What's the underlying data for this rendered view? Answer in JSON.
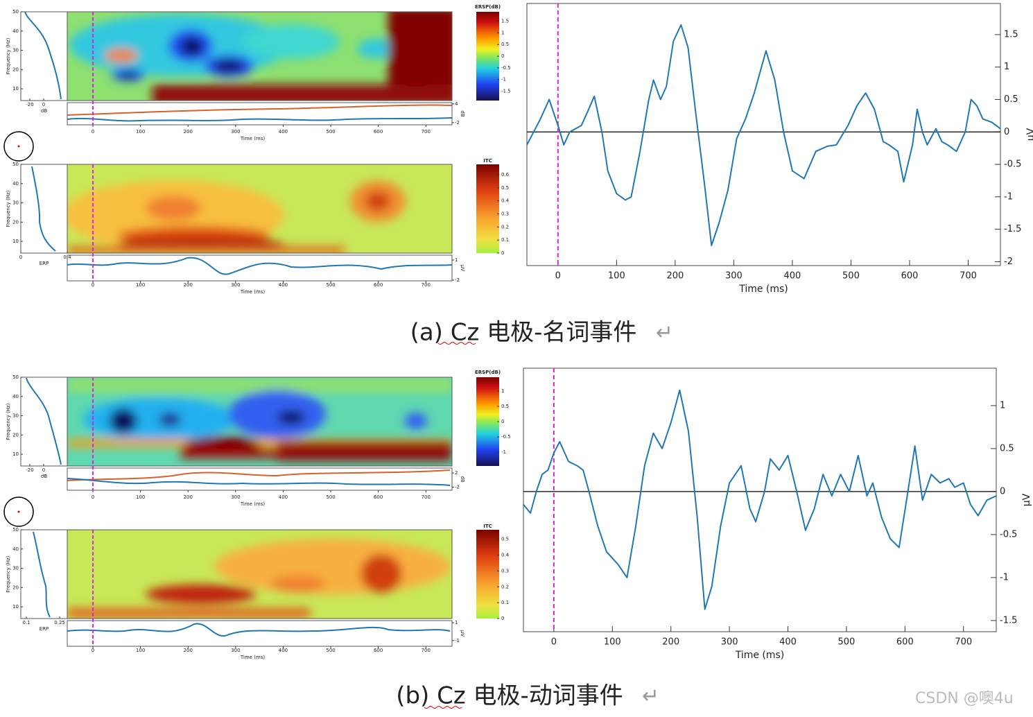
{
  "chart_data": [
    {
      "type": "line",
      "xlabel": "Time (ms)",
      "ylabel": "μV",
      "color": "#1f77b4",
      "marker_x": 0,
      "marker_color": "#e020e0",
      "zero_line": true,
      "xlim": [
        -53,
        755
      ],
      "ylim": [
        -2.06,
        1.98
      ],
      "xticks": [
        0,
        100,
        200,
        300,
        400,
        500,
        600,
        700
      ],
      "yticks": [
        1.5,
        1,
        0.5,
        0,
        -0.5,
        -1,
        -1.5,
        -2
      ],
      "x": [
        -53,
        -30,
        -15,
        0,
        10,
        20,
        30,
        40,
        50,
        62,
        75,
        85,
        100,
        115,
        125,
        140,
        155,
        163,
        175,
        185,
        197,
        210,
        222,
        235,
        250,
        262,
        275,
        290,
        305,
        320,
        335,
        355,
        370,
        385,
        400,
        420,
        440,
        460,
        475,
        495,
        510,
        525,
        540,
        555,
        565,
        580,
        590,
        605,
        613,
        622,
        630,
        645,
        655,
        665,
        680,
        695,
        705,
        715,
        725,
        740,
        755
      ],
      "values": [
        -0.2,
        0.2,
        0.5,
        0.1,
        -0.2,
        0.0,
        0.05,
        0.1,
        0.3,
        0.55,
        0.0,
        -0.6,
        -0.95,
        -1.05,
        -1.0,
        -0.3,
        0.5,
        0.8,
        0.5,
        0.7,
        1.4,
        1.65,
        1.3,
        0.3,
        -0.8,
        -1.75,
        -1.4,
        -0.9,
        -0.1,
        0.2,
        0.6,
        1.25,
        0.8,
        0.0,
        -0.6,
        -0.72,
        -0.3,
        -0.22,
        -0.2,
        0.1,
        0.4,
        0.6,
        0.35,
        -0.15,
        -0.2,
        -0.3,
        -0.77,
        -0.2,
        0.35,
        0.0,
        -0.2,
        0.05,
        -0.15,
        -0.2,
        -0.3,
        0.0,
        0.5,
        0.4,
        0.2,
        0.15,
        0.05
      ]
    },
    {
      "type": "line",
      "xlabel": "Time (ms)",
      "ylabel": "μV",
      "color": "#1f77b4",
      "marker_x": 0,
      "marker_color": "#e020e0",
      "zero_line": true,
      "xlim": [
        -52,
        756
      ],
      "ylim": [
        -1.63,
        1.435
      ],
      "xticks": [
        0,
        100,
        200,
        300,
        400,
        500,
        600,
        700
      ],
      "yticks": [
        1,
        0.5,
        0,
        -0.5,
        -1,
        -1.5
      ],
      "x": [
        -52,
        -40,
        -30,
        -20,
        -10,
        0,
        10,
        25,
        40,
        50,
        60,
        75,
        90,
        110,
        125,
        140,
        155,
        170,
        185,
        200,
        215,
        230,
        245,
        258,
        270,
        285,
        300,
        320,
        335,
        345,
        360,
        370,
        385,
        400,
        415,
        430,
        445,
        460,
        475,
        490,
        505,
        520,
        535,
        545,
        560,
        575,
        590,
        605,
        617,
        630,
        645,
        660,
        675,
        685,
        700,
        712,
        725,
        740,
        756
      ],
      "values": [
        -0.15,
        -0.25,
        0.0,
        0.2,
        0.25,
        0.45,
        0.58,
        0.35,
        0.3,
        0.25,
        0.0,
        -0.4,
        -0.7,
        -0.85,
        -1.0,
        -0.4,
        0.3,
        0.68,
        0.5,
        0.8,
        1.18,
        0.7,
        -0.3,
        -1.37,
        -1.1,
        -0.4,
        0.1,
        0.3,
        -0.2,
        -0.35,
        0.0,
        0.38,
        0.25,
        0.42,
        0.0,
        -0.45,
        -0.2,
        0.2,
        -0.05,
        0.2,
        0.0,
        0.42,
        -0.05,
        0.1,
        -0.3,
        -0.55,
        -0.65,
        0.0,
        0.53,
        -0.1,
        0.2,
        0.1,
        0.15,
        0.05,
        0.1,
        -0.15,
        -0.28,
        -0.1,
        -0.05
      ]
    }
  ],
  "panels": [
    {
      "freq_label": "Frequency (Hz)",
      "freq_ticks": [
        10,
        20,
        30,
        40,
        50
      ],
      "freq_lim": [
        3.9,
        50
      ],
      "db_ticks": [
        -20,
        0
      ],
      "db_lim": [
        -33,
        34
      ],
      "db_label": "dB",
      "time_ticks": [
        0,
        100,
        200,
        300,
        400,
        500,
        600,
        700
      ],
      "time_lim": [
        -54,
        755
      ],
      "time_label": "Time (ms)",
      "event_marker": 0,
      "ersp_label": "ERSP(dB)",
      "ersp_ticks": [
        1.5,
        1,
        0.5,
        0,
        -0.5,
        -1,
        -1.5
      ],
      "ersp_lim": [
        -1.9,
        1.9
      ],
      "ersp_strip_ticks": [
        4,
        -2
      ],
      "ersp_strip_lim": [
        -2.7,
        4.4
      ],
      "ersp_strip_unit": "dB",
      "itc_label": "ITC",
      "itc_ticks": [
        0.6,
        0.5,
        0.4,
        0.3,
        0.2,
        0.1,
        0
      ],
      "itc_lim": [
        0,
        0.68
      ],
      "erp_label": "ERP",
      "erp_ticks": [
        0,
        0.4
      ],
      "erp_lim": [
        0,
        0.4
      ],
      "erp_strip_ticks": [
        1,
        -2
      ],
      "erp_strip_lim": [
        -2.1,
        1.72
      ],
      "erp_strip_unit": "μV"
    },
    {
      "freq_label": "Frequency (Hz)",
      "freq_ticks": [
        10,
        20,
        30,
        40,
        50
      ],
      "freq_lim": [
        3.9,
        50
      ],
      "db_ticks": [
        -20,
        0
      ],
      "db_lim": [
        -33,
        34
      ],
      "db_label": "dB",
      "time_ticks": [
        0,
        100,
        200,
        300,
        400,
        500,
        600,
        700
      ],
      "time_lim": [
        -54,
        755
      ],
      "time_label": "Time (ms)",
      "event_marker": 0,
      "ersp_label": "ERSP(dB)",
      "ersp_ticks": [
        1,
        0.5,
        0,
        -0.5,
        -1
      ],
      "ersp_lim": [
        -1.45,
        1.45
      ],
      "ersp_strip_ticks": [
        2,
        -2
      ],
      "ersp_strip_lim": [
        -2.9,
        3.4
      ],
      "ersp_strip_unit": "dB",
      "itc_label": "ITC",
      "itc_ticks": [
        0.5,
        0.4,
        0.3,
        0.2,
        0.1,
        0
      ],
      "itc_lim": [
        0,
        0.56
      ],
      "erp_label": "ERP",
      "erp_ticks": [
        0.1,
        0.25
      ],
      "erp_lim": [
        0.075,
        0.284
      ],
      "erp_strip_ticks": [
        1,
        -1
      ],
      "erp_strip_lim": [
        -1.64,
        1.24
      ],
      "erp_strip_unit": "μV"
    }
  ],
  "captions": [
    {
      "text": "(a) Cz 电极-名词事件",
      "mark": "↵"
    },
    {
      "text": "(b) Cz 电极-动词事件",
      "mark": "↵"
    }
  ],
  "watermark": "CSDN @噢4u"
}
